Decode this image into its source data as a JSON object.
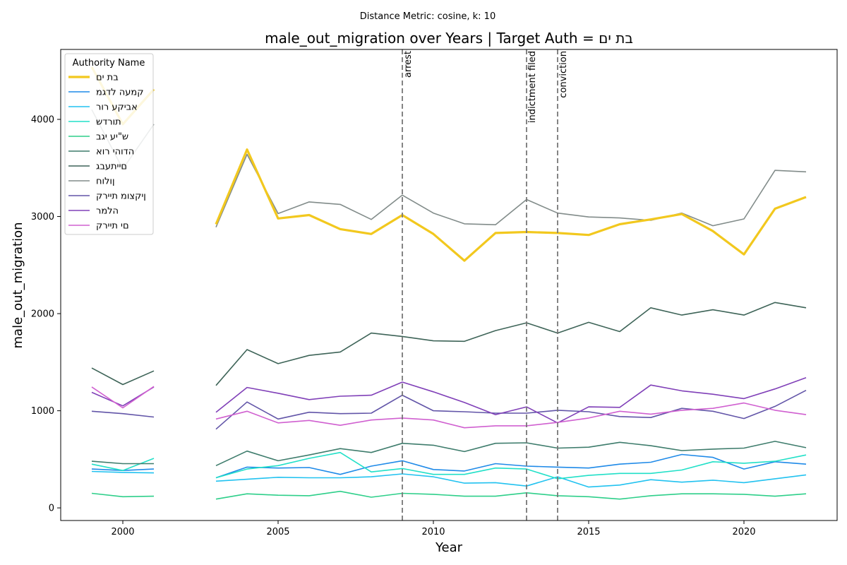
{
  "chart_data": {
    "type": "line",
    "suptitle": "Distance Metric: cosine, k: 10",
    "title": "male_out_migration over Years | Target Auth = בת ים",
    "xlabel": "Year",
    "ylabel": "male_out_migration",
    "xlim": [
      1998,
      2023
    ],
    "ylim": [
      -130,
      4720
    ],
    "xticks": [
      2000,
      2005,
      2010,
      2015,
      2020
    ],
    "yticks": [
      0,
      1000,
      2000,
      3000,
      4000
    ],
    "grid": false,
    "legend": {
      "title": "Authority Name",
      "placement": "top-left"
    },
    "events": [
      {
        "x": 2009,
        "label": "arrest"
      },
      {
        "x": 2013,
        "label": "indictment filed"
      },
      {
        "x": 2014,
        "label": "conviction"
      }
    ],
    "x": [
      1999,
      2000,
      2001,
      2002,
      2003,
      2004,
      2005,
      2006,
      2007,
      2008,
      2009,
      2010,
      2011,
      2012,
      2013,
      2014,
      2015,
      2016,
      2017,
      2018,
      2019,
      2020,
      2021,
      2022
    ],
    "series": [
      {
        "name": "בת ים",
        "color": "#f2c81e",
        "width": 3.2,
        "values": [
          4540,
          3950,
          4310,
          null,
          2920,
          3690,
          2980,
          3015,
          2870,
          2820,
          3015,
          2820,
          2545,
          2830,
          2840,
          2830,
          2810,
          2920,
          2970,
          3025,
          2850,
          2610,
          3080,
          3200
        ]
      },
      {
        "name": "קמעה לדגמ",
        "color": "#1f8ae8",
        "width": 1.6,
        "values": [
          400,
          385,
          400,
          null,
          310,
          420,
          410,
          415,
          345,
          430,
          485,
          395,
          380,
          455,
          430,
          420,
          410,
          450,
          470,
          550,
          520,
          400,
          475,
          450
        ]
      },
      {
        "name": "אביקע רור",
        "color": "#22c2f0",
        "width": 1.6,
        "values": [
          375,
          365,
          360,
          null,
          275,
          295,
          315,
          310,
          310,
          320,
          350,
          320,
          255,
          260,
          225,
          320,
          215,
          235,
          290,
          265,
          285,
          260,
          300,
          340
        ]
      },
      {
        "name": "תורדש",
        "color": "#22e0c8",
        "width": 1.6,
        "values": [
          450,
          385,
          510,
          null,
          310,
          400,
          435,
          510,
          570,
          370,
          405,
          345,
          345,
          410,
          400,
          300,
          335,
          355,
          355,
          390,
          475,
          460,
          480,
          545
        ]
      },
      {
        "name": "ש\"יע יגב",
        "color": "#2ecf8a",
        "width": 1.6,
        "values": [
          150,
          115,
          120,
          null,
          90,
          145,
          130,
          125,
          170,
          110,
          150,
          140,
          120,
          120,
          155,
          125,
          115,
          90,
          125,
          145,
          145,
          140,
          120,
          145
        ]
      },
      {
        "name": "הדוהי רוא",
        "color": "#3e7c6c",
        "width": 1.6,
        "values": [
          480,
          455,
          455,
          null,
          435,
          585,
          485,
          545,
          610,
          570,
          665,
          645,
          580,
          665,
          670,
          615,
          625,
          675,
          640,
          590,
          605,
          615,
          685,
          620
        ]
      },
      {
        "name": "םייתעבג",
        "color": "#3e6458",
        "width": 1.6,
        "values": [
          1440,
          1270,
          1410,
          null,
          1260,
          1630,
          1485,
          1570,
          1605,
          1800,
          1765,
          1720,
          1715,
          1825,
          1905,
          1800,
          1910,
          1815,
          2060,
          1985,
          2040,
          1985,
          2115,
          2060
        ]
      },
      {
        "name": "ןולוח",
        "color": "#828c8a",
        "width": 1.6,
        "values": [
          4100,
          3490,
          3950,
          null,
          2890,
          3640,
          3030,
          3150,
          3125,
          2970,
          3220,
          3035,
          2925,
          2915,
          3175,
          3035,
          2995,
          2985,
          2960,
          3035,
          2905,
          2975,
          3475,
          3460
        ]
      },
      {
        "name": "ןיקצומ תיירק",
        "color": "#6255a8",
        "width": 1.6,
        "values": [
          995,
          970,
          935,
          null,
          810,
          1090,
          915,
          985,
          970,
          975,
          1160,
          1000,
          990,
          975,
          975,
          1005,
          990,
          940,
          930,
          1025,
          995,
          920,
          1045,
          1210
        ]
      },
      {
        "name": "הלמר",
        "color": "#8040b8",
        "width": 1.6,
        "values": [
          1190,
          1050,
          1245,
          null,
          985,
          1240,
          1180,
          1115,
          1150,
          1160,
          1295,
          1195,
          1085,
          960,
          1040,
          875,
          1040,
          1035,
          1265,
          1205,
          1170,
          1125,
          1225,
          1340
        ]
      },
      {
        "name": "םי תיירק",
        "color": "#d060d0",
        "width": 1.6,
        "values": [
          1245,
          1030,
          1250,
          null,
          915,
          995,
          875,
          900,
          850,
          905,
          925,
          905,
          825,
          845,
          845,
          880,
          925,
          995,
          965,
          1005,
          1025,
          1080,
          1005,
          960
        ]
      }
    ]
  }
}
